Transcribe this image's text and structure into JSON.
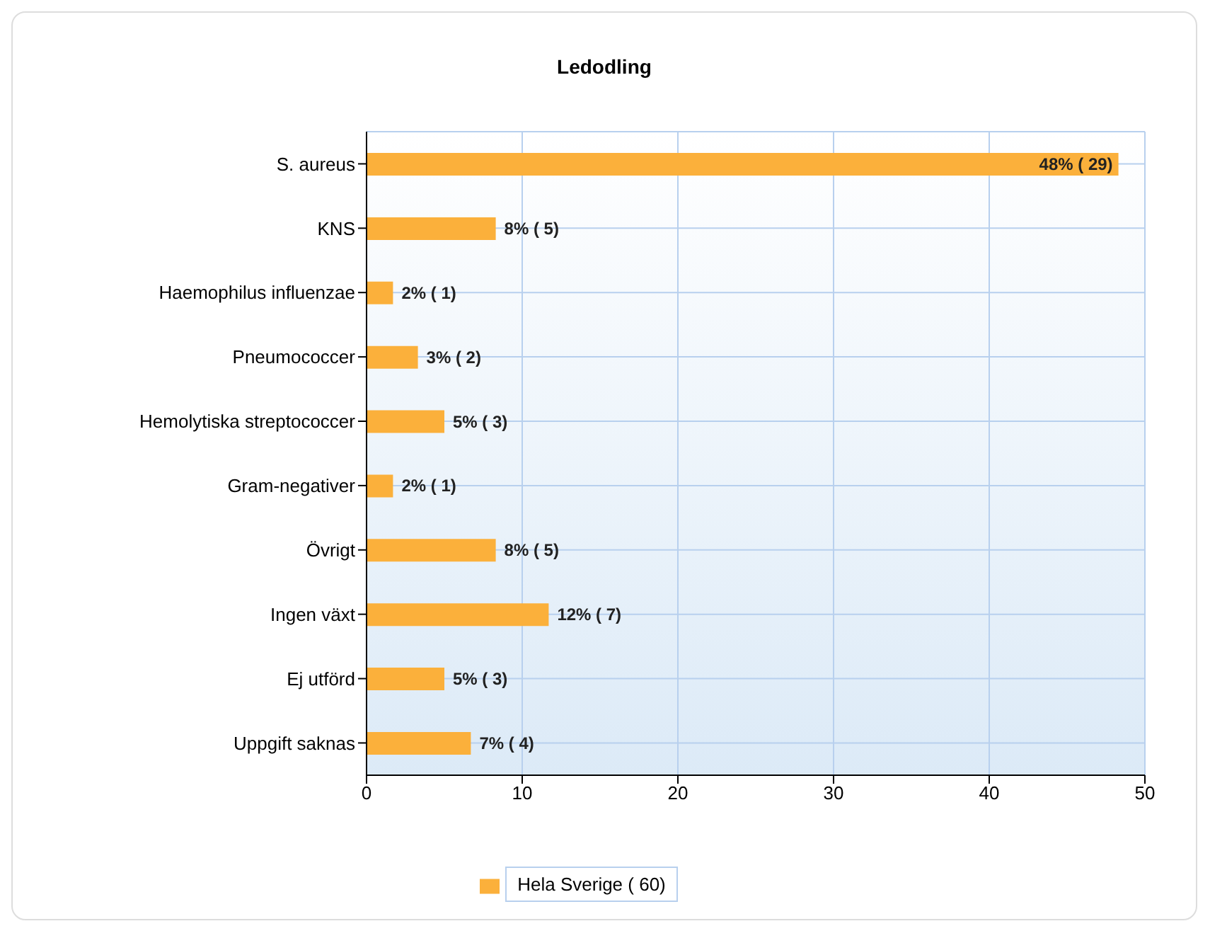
{
  "chart_data": {
    "type": "bar",
    "orientation": "horizontal",
    "title": "Ledodling",
    "categories": [
      "S. aureus",
      "KNS",
      "Haemophilus influenzae",
      "Pneumococcer",
      "Hemolytiska streptococcer",
      "Gram-negativer",
      "Övrigt",
      "Ingen växt",
      "Ej utförd",
      "Uppgift saknas"
    ],
    "series": [
      {
        "name": "Hela Sverige ( 60)",
        "color": "#fbb03b",
        "values": [
          48.3,
          8.3,
          1.7,
          3.3,
          5,
          1.7,
          8.3,
          11.7,
          5,
          6.7
        ],
        "value_labels": [
          "48% ( 29)",
          "8% ( 5)",
          "2% ( 1)",
          "3% ( 2)",
          "5% ( 3)",
          "2% ( 1)",
          "8% ( 5)",
          "12% ( 7)",
          "5% ( 3)",
          "7% ( 4)"
        ]
      }
    ],
    "xlim": [
      0,
      50
    ],
    "xticks": [
      0,
      10,
      20,
      30,
      40,
      50
    ],
    "grid": true,
    "legend": "bottom"
  }
}
